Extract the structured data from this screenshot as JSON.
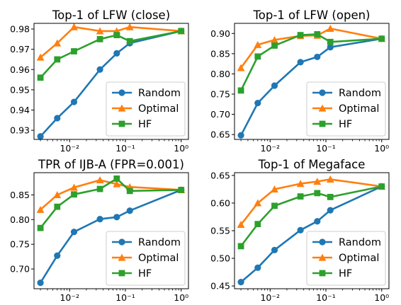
{
  "colors": {
    "random": "#1f77b4",
    "optimal": "#ff7f0e",
    "hf": "#2ca02c"
  },
  "chart_data": [
    {
      "type": "line",
      "title": "Top-1 of LFW (close)",
      "xscale": "log",
      "xlim": [
        0.0023,
        1.35
      ],
      "ylim": [
        0.9255,
        0.9828
      ],
      "x": [
        0.003,
        0.006,
        0.012,
        0.035,
        0.07,
        0.12,
        1.0
      ],
      "x_ticks": [
        {
          "value": 0.01,
          "label": "10⁻²"
        },
        {
          "value": 0.1,
          "label": "10⁻¹"
        },
        {
          "value": 1,
          "label": "10⁰"
        }
      ],
      "y_ticks": [
        {
          "value": 0.93,
          "label": "0.93"
        },
        {
          "value": 0.94,
          "label": "0.94"
        },
        {
          "value": 0.95,
          "label": "0.95"
        },
        {
          "value": 0.96,
          "label": "0.96"
        },
        {
          "value": 0.97,
          "label": "0.97"
        },
        {
          "value": 0.98,
          "label": "0.98"
        }
      ],
      "legend": "lower-right",
      "series": [
        {
          "name": "Random",
          "color": "#1f77b4",
          "marker": "circle",
          "values": [
            0.927,
            0.936,
            0.944,
            0.96,
            0.968,
            0.973,
            0.979
          ]
        },
        {
          "name": "Optimal",
          "color": "#ff7f0e",
          "marker": "triangle",
          "values": [
            0.966,
            0.973,
            0.981,
            0.979,
            0.979,
            0.981,
            0.979
          ]
        },
        {
          "name": "HF",
          "color": "#2ca02c",
          "marker": "square",
          "values": [
            0.956,
            0.965,
            0.969,
            0.975,
            0.977,
            0.974,
            0.979
          ]
        }
      ]
    },
    {
      "type": "line",
      "title": "Top-1 of LFW (open)",
      "xscale": "log",
      "xlim": [
        0.0023,
        1.35
      ],
      "ylim": [
        0.638,
        0.925
      ],
      "x": [
        0.003,
        0.006,
        0.012,
        0.035,
        0.07,
        0.12,
        1.0
      ],
      "x_ticks": [
        {
          "value": 0.01,
          "label": "10⁻²"
        },
        {
          "value": 0.1,
          "label": "10⁻¹"
        },
        {
          "value": 1,
          "label": "10⁰"
        }
      ],
      "y_ticks": [
        {
          "value": 0.65,
          "label": "0.65"
        },
        {
          "value": 0.7,
          "label": "0.70"
        },
        {
          "value": 0.75,
          "label": "0.75"
        },
        {
          "value": 0.8,
          "label": "0.80"
        },
        {
          "value": 0.85,
          "label": "0.85"
        },
        {
          "value": 0.9,
          "label": "0.90"
        }
      ],
      "legend": "lower-right",
      "series": [
        {
          "name": "Random",
          "color": "#1f77b4",
          "marker": "circle",
          "values": [
            0.648,
            0.728,
            0.771,
            0.829,
            0.842,
            0.866,
            0.887
          ]
        },
        {
          "name": "Optimal",
          "color": "#ff7f0e",
          "marker": "triangle",
          "values": [
            0.815,
            0.872,
            0.884,
            0.894,
            0.895,
            0.912,
            0.887
          ]
        },
        {
          "name": "HF",
          "color": "#2ca02c",
          "marker": "square",
          "values": [
            0.759,
            0.843,
            0.87,
            0.896,
            0.898,
            0.879,
            0.887
          ]
        }
      ]
    },
    {
      "type": "line",
      "title": "TPR of IJB-A (FPR=0.001)",
      "xscale": "log",
      "xlim": [
        0.0023,
        1.35
      ],
      "ylim": [
        0.66,
        0.895
      ],
      "x": [
        0.003,
        0.006,
        0.012,
        0.035,
        0.07,
        0.12,
        1.0
      ],
      "x_ticks": [
        {
          "value": 0.01,
          "label": "10⁻²"
        },
        {
          "value": 0.1,
          "label": "10⁻¹"
        },
        {
          "value": 1,
          "label": "10⁰"
        }
      ],
      "y_ticks": [
        {
          "value": 0.7,
          "label": "0.70"
        },
        {
          "value": 0.75,
          "label": "0.75"
        },
        {
          "value": 0.8,
          "label": "0.80"
        },
        {
          "value": 0.85,
          "label": "0.85"
        }
      ],
      "legend": "lower-right",
      "series": [
        {
          "name": "Random",
          "color": "#1f77b4",
          "marker": "circle",
          "values": [
            0.672,
            0.727,
            0.775,
            0.801,
            0.805,
            0.818,
            0.86
          ]
        },
        {
          "name": "Optimal",
          "color": "#ff7f0e",
          "marker": "triangle",
          "values": [
            0.82,
            0.85,
            0.865,
            0.88,
            0.872,
            0.866,
            0.86
          ]
        },
        {
          "name": "HF",
          "color": "#2ca02c",
          "marker": "square",
          "values": [
            0.783,
            0.826,
            0.851,
            0.862,
            0.883,
            0.858,
            0.86
          ]
        }
      ]
    },
    {
      "type": "line",
      "title": "Top-1 of Megaface",
      "xscale": "log",
      "xlim": [
        0.0023,
        1.35
      ],
      "ylim": [
        0.445,
        0.655
      ],
      "x": [
        0.003,
        0.006,
        0.012,
        0.035,
        0.07,
        0.12,
        1.0
      ],
      "x_ticks": [
        {
          "value": 0.01,
          "label": "10⁻²"
        },
        {
          "value": 0.1,
          "label": "10⁻¹"
        },
        {
          "value": 1,
          "label": "10⁰"
        }
      ],
      "y_ticks": [
        {
          "value": 0.45,
          "label": "0.45"
        },
        {
          "value": 0.5,
          "label": "0.50"
        },
        {
          "value": 0.55,
          "label": "0.55"
        },
        {
          "value": 0.6,
          "label": "0.60"
        },
        {
          "value": 0.65,
          "label": "0.65"
        }
      ],
      "legend": "lower-right",
      "series": [
        {
          "name": "Random",
          "color": "#1f77b4",
          "marker": "circle",
          "values": [
            0.457,
            0.483,
            0.515,
            0.551,
            0.567,
            0.587,
            0.63
          ]
        },
        {
          "name": "Optimal",
          "color": "#ff7f0e",
          "marker": "triangle",
          "values": [
            0.561,
            0.6,
            0.625,
            0.635,
            0.639,
            0.643,
            0.63
          ]
        },
        {
          "name": "HF",
          "color": "#2ca02c",
          "marker": "square",
          "values": [
            0.522,
            0.562,
            0.595,
            0.612,
            0.618,
            0.611,
            0.63
          ]
        }
      ]
    }
  ]
}
